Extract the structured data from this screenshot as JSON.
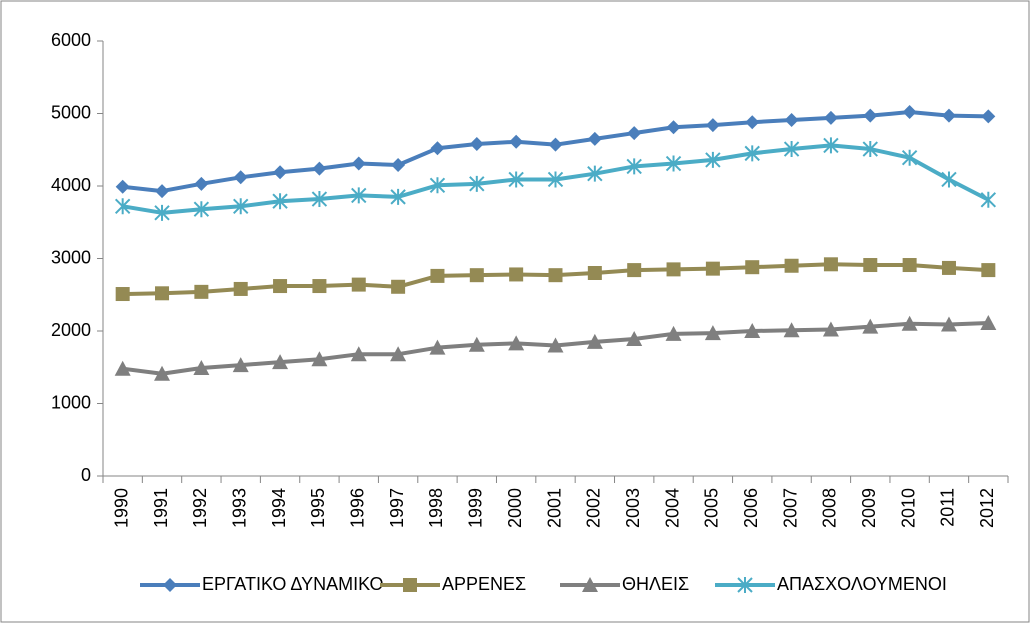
{
  "chart_data": {
    "type": "line",
    "categories": [
      "1990",
      "1991",
      "1992",
      "1993",
      "1994",
      "1995",
      "1996",
      "1997",
      "1998",
      "1999",
      "2000",
      "2001",
      "2002",
      "2003",
      "2004",
      "2005",
      "2006",
      "2007",
      "2008",
      "2009",
      "2010",
      "2011",
      "2012"
    ],
    "series": [
      {
        "name": "ΕΡΓΑΤΙΚΟ ΔΥΝΑΜΙΚΟ",
        "color": "#4a7ebb",
        "marker": "diamond",
        "values": [
          3990,
          3930,
          4030,
          4120,
          4190,
          4240,
          4310,
          4290,
          4520,
          4580,
          4610,
          4570,
          4650,
          4730,
          4810,
          4840,
          4880,
          4910,
          4940,
          4970,
          5020,
          4970,
          4960
        ]
      },
      {
        "name": "ΑΡΡΕΝΕΣ",
        "color": "#948a54",
        "marker": "square",
        "values": [
          2510,
          2520,
          2540,
          2580,
          2620,
          2620,
          2640,
          2610,
          2760,
          2770,
          2780,
          2770,
          2800,
          2840,
          2850,
          2860,
          2880,
          2900,
          2920,
          2910,
          2910,
          2870,
          2840
        ]
      },
      {
        "name": "ΘΗΛΕΙΣ",
        "color": "#7f7f7f",
        "marker": "triangle",
        "values": [
          1480,
          1410,
          1490,
          1530,
          1570,
          1610,
          1680,
          1680,
          1770,
          1810,
          1830,
          1800,
          1850,
          1890,
          1960,
          1970,
          2000,
          2010,
          2020,
          2060,
          2100,
          2090,
          2110
        ]
      },
      {
        "name": "ΑΠΑΣΧΟΛΟΥΜΕΝΟΙ",
        "color": "#4bacc6",
        "marker": "star",
        "values": [
          3720,
          3630,
          3680,
          3720,
          3790,
          3820,
          3870,
          3850,
          4010,
          4030,
          4090,
          4090,
          4170,
          4270,
          4310,
          4360,
          4450,
          4510,
          4560,
          4510,
          4390,
          4090,
          3810
        ]
      }
    ],
    "ylim": [
      0,
      6000
    ],
    "yticks": [
      0,
      1000,
      2000,
      3000,
      4000,
      5000,
      6000
    ],
    "grid": false,
    "legend": "bottom"
  }
}
